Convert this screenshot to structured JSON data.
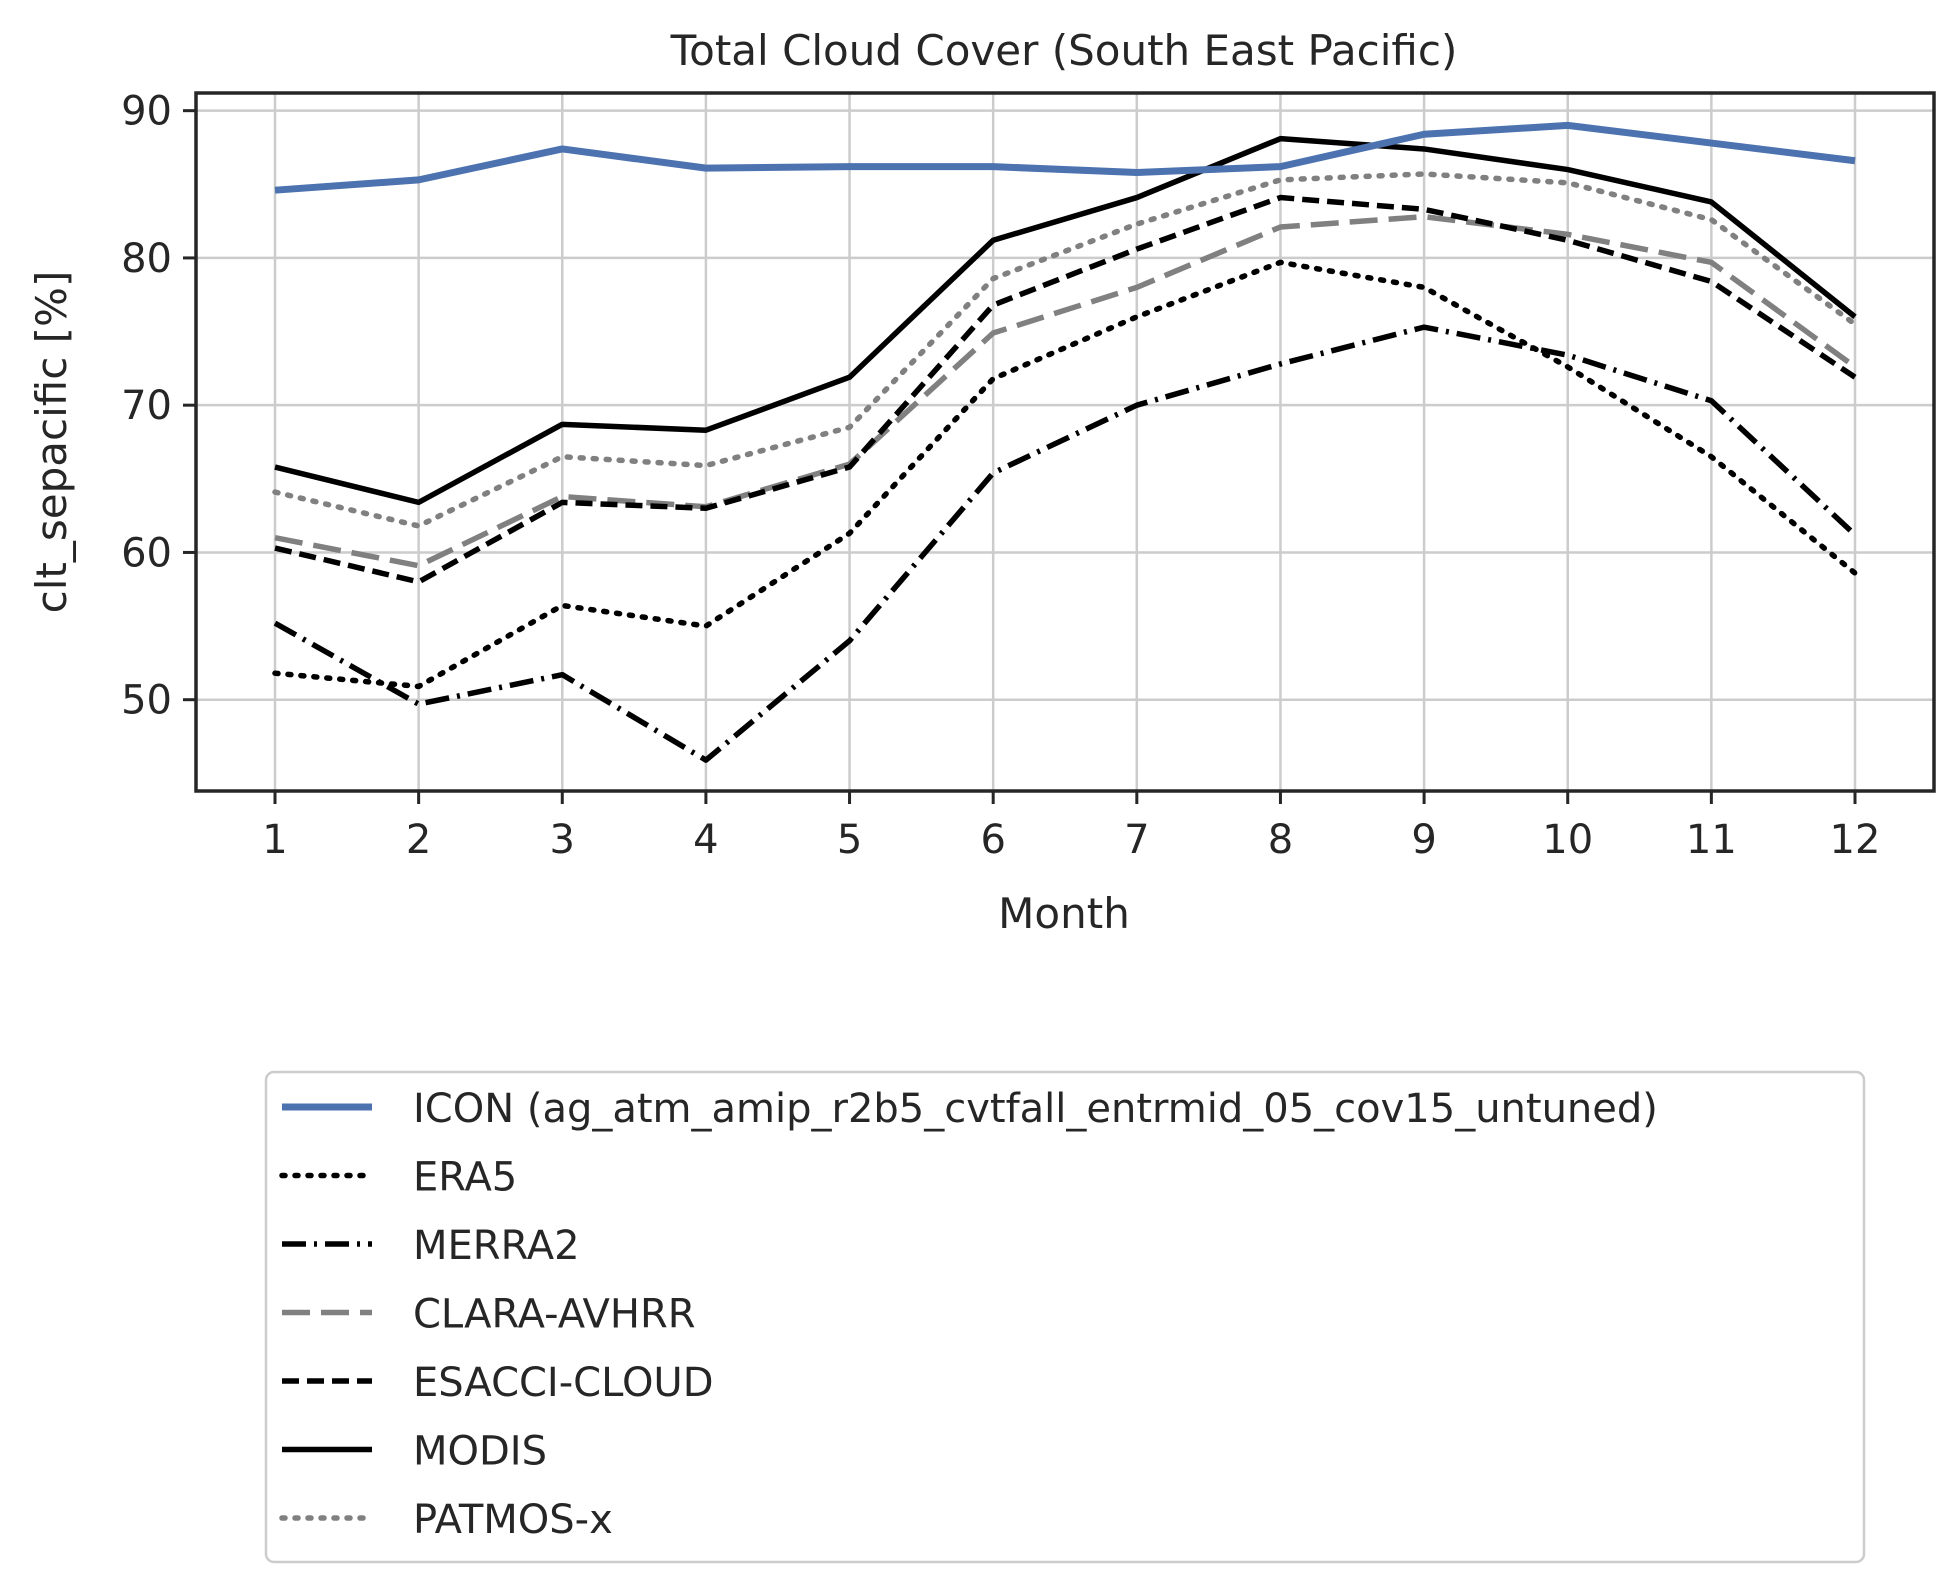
{
  "chart_data": {
    "type": "line",
    "title": "Total Cloud Cover (South East Pacific)",
    "xlabel": "Month",
    "ylabel": "clt_sepacific [%]",
    "x": [
      1,
      2,
      3,
      4,
      5,
      6,
      7,
      8,
      9,
      10,
      11,
      12
    ],
    "xlim": [
      0.45,
      12.55
    ],
    "ylim": [
      43.8,
      91.2
    ],
    "yticks": [
      50,
      60,
      70,
      80,
      90
    ],
    "grid": true,
    "legend_position": "below plot",
    "series": [
      {
        "name": "ICON (ag_atm_amip_r2b5_cvtfall_entrmid_05_cov15_untuned)",
        "color": "#4c72b0",
        "style": "solid",
        "values": [
          84.6,
          85.3,
          87.4,
          86.1,
          86.2,
          86.2,
          85.8,
          86.2,
          88.4,
          89.0,
          87.8,
          86.6
        ]
      },
      {
        "name": "ERA5",
        "color": "#000000",
        "style": "dotted",
        "values": [
          51.8,
          50.9,
          56.4,
          55.0,
          61.3,
          71.8,
          76.0,
          79.7,
          78.0,
          72.6,
          66.5,
          58.6
        ]
      },
      {
        "name": "MERRA2",
        "color": "#000000",
        "style": "dashdot",
        "values": [
          55.2,
          49.7,
          51.7,
          45.9,
          54.0,
          65.4,
          70.0,
          72.8,
          75.3,
          73.4,
          70.3,
          61.2
        ]
      },
      {
        "name": "CLARA-AVHRR",
        "color": "#808080",
        "style": "longdash",
        "values": [
          61.0,
          59.1,
          63.8,
          63.1,
          66.0,
          74.9,
          78.0,
          82.1,
          82.8,
          81.6,
          79.7,
          72.6
        ]
      },
      {
        "name": "ESACCI-CLOUD",
        "color": "#000000",
        "style": "dashed",
        "values": [
          60.3,
          58.0,
          63.4,
          63.0,
          65.8,
          76.8,
          80.6,
          84.1,
          83.3,
          81.2,
          78.4,
          71.9
        ]
      },
      {
        "name": "MODIS",
        "color": "#000000",
        "style": "solid",
        "values": [
          65.8,
          63.4,
          68.7,
          68.3,
          71.9,
          81.2,
          84.1,
          88.1,
          87.4,
          86.0,
          83.8,
          76.0
        ]
      },
      {
        "name": "PATMOS-x",
        "color": "#808080",
        "style": "dotted",
        "values": [
          64.1,
          61.8,
          66.5,
          65.9,
          68.5,
          78.6,
          82.3,
          85.3,
          85.7,
          85.1,
          82.6,
          75.5
        ]
      }
    ]
  }
}
